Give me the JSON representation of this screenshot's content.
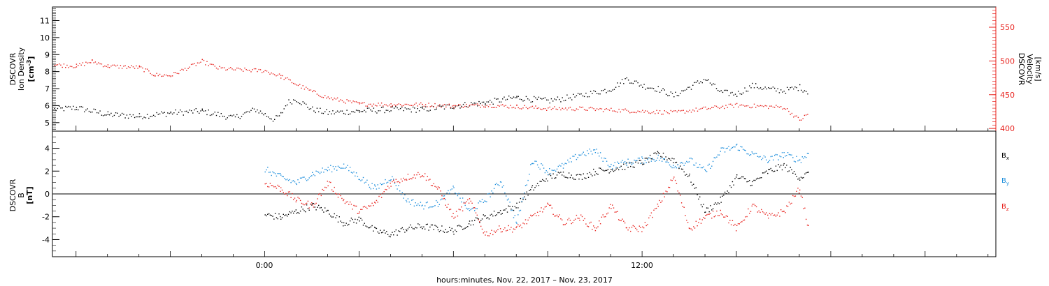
{
  "figure": {
    "xlabel": "hours:minutes, Nov. 22, 2017 – Nov. 23, 2017",
    "x_ticks": [
      "0:00",
      "12:00"
    ]
  },
  "panels": {
    "top": {
      "left_label_lines": [
        "DSCOVR",
        "Ion Density"
      ],
      "left_unit_prefix": "[cm",
      "left_unit_sup": "-3",
      "left_unit_suffix": "]",
      "right_label_lines": [
        "DSCOVR",
        "Velocity",
        "[km/s]"
      ],
      "left_ticks": [
        "5",
        "6",
        "7",
        "8",
        "9",
        "10",
        "11"
      ],
      "right_ticks": [
        "400",
        "450",
        "500",
        "550"
      ]
    },
    "bottom": {
      "label_lines": [
        "DSCOVR",
        "B",
        "[nT]"
      ],
      "ticks": [
        "-4",
        "-2",
        "0",
        "2",
        "4"
      ],
      "legend": [
        {
          "base": "B",
          "sub": "x",
          "color": "#000000"
        },
        {
          "base": "B",
          "sub": "y",
          "color": "#1e8fdc"
        },
        {
          "base": "B",
          "sub": "z",
          "color": "#e8231e"
        }
      ]
    }
  },
  "colors": {
    "black": "#000000",
    "red": "#e8231e",
    "blue": "#1e8fdc",
    "axis": "#000000"
  },
  "chart_data": [
    {
      "type": "scatter",
      "x_unit": "hours from 2017-11-22 00:00",
      "xlim": [
        -6.75,
        23.25
      ],
      "ylim_left": [
        4.5,
        11.8
      ],
      "ylim_right": [
        396,
        580
      ],
      "right_axis_color": "#e8231e",
      "series": [
        {
          "color": "#000000",
          "axis": "left",
          "x": [
            -6.7,
            -6,
            -5,
            -4,
            -3,
            -2,
            -1,
            -0.3,
            0.3,
            0.5,
            0.7,
            1,
            1.5,
            2,
            3,
            4,
            5,
            6,
            7,
            8,
            9,
            10,
            11,
            11.5,
            12,
            12.5,
            13,
            13.5,
            14,
            14.5,
            15,
            15.5,
            16,
            16.5,
            17,
            17.3
          ],
          "y": [
            5.8,
            5.9,
            5.5,
            5.4,
            5.6,
            5.7,
            5.3,
            5.8,
            5.2,
            5.5,
            6.2,
            6.4,
            5.8,
            5.6,
            5.7,
            5.8,
            5.8,
            6.0,
            6.2,
            6.5,
            6.3,
            6.6,
            7.0,
            7.6,
            7.2,
            7.0,
            6.6,
            7.1,
            7.6,
            6.8,
            6.7,
            7.2,
            7.0,
            6.9,
            7.1,
            6.8
          ]
        },
        {
          "color": "#e8231e",
          "axis": "right",
          "x": [
            -6.7,
            -6,
            -5.5,
            -5,
            -4,
            -3.5,
            -3,
            -2,
            -1.5,
            -1,
            0,
            0.5,
            1,
            1.5,
            2,
            3,
            4,
            5,
            6,
            7,
            8,
            9,
            10,
            11,
            12,
            13,
            14,
            15,
            15.5,
            16,
            16.5,
            17,
            17.3
          ],
          "y": [
            495,
            493,
            500,
            493,
            491,
            480,
            479,
            500,
            490,
            488,
            486,
            478,
            466,
            455,
            446,
            437,
            436,
            436,
            434,
            435,
            433,
            430,
            430,
            428,
            426,
            424,
            430,
            435,
            434,
            433,
            432,
            413,
            423
          ]
        }
      ]
    },
    {
      "type": "scatter",
      "x_unit": "hours from 2017-11-22 00:00",
      "xlim": [
        -6.75,
        23.25
      ],
      "ylim": [
        -5.5,
        5.5
      ],
      "series": [
        {
          "name": "Bx",
          "color": "#000000",
          "x": [
            0,
            0.5,
            1,
            1.5,
            2,
            2.5,
            3,
            3.5,
            4,
            4.5,
            5,
            5.5,
            6,
            6.5,
            7,
            7.5,
            8,
            8.5,
            9,
            9.5,
            10,
            10.5,
            11,
            11.5,
            12,
            12.5,
            13,
            13.5,
            14,
            14.5,
            15,
            15.5,
            16,
            16.5,
            17,
            17.3
          ],
          "y": [
            -1.8,
            -2.0,
            -1.5,
            -1.0,
            -1.5,
            -2.5,
            -2.2,
            -3.2,
            -3.5,
            -3.0,
            -2.8,
            -3.0,
            -3.2,
            -2.5,
            -2.0,
            -1.5,
            -1.0,
            0.5,
            1.5,
            1.8,
            1.5,
            2.0,
            2.2,
            2.5,
            2.8,
            3.5,
            3.0,
            1.5,
            -1.5,
            -0.5,
            1.5,
            1.0,
            2.0,
            2.5,
            1.5,
            1.8
          ]
        },
        {
          "name": "By",
          "color": "#1e8fdc",
          "x": [
            0,
            0.5,
            1,
            1.5,
            2,
            2.5,
            3,
            3.5,
            4,
            4.5,
            5,
            5.5,
            6,
            6.5,
            7,
            7.5,
            8,
            8.5,
            9,
            9.5,
            10,
            10.5,
            11,
            11.5,
            12,
            12.5,
            13,
            13.5,
            14,
            14.5,
            15,
            15.5,
            16,
            16.5,
            17,
            17.3
          ],
          "y": [
            2.2,
            1.5,
            1.0,
            1.8,
            2.2,
            2.5,
            1.5,
            0.5,
            1.5,
            -0.5,
            -1.0,
            -0.8,
            0.5,
            -1.5,
            -0.5,
            1.2,
            -2.5,
            3.0,
            2.0,
            2.5,
            3.5,
            3.8,
            2.5,
            2.8,
            3.0,
            3.2,
            2.5,
            3.0,
            2.0,
            3.8,
            4.2,
            3.5,
            3.0,
            3.5,
            3.0,
            3.6
          ]
        },
        {
          "name": "Bz",
          "color": "#e8231e",
          "x": [
            0,
            0.5,
            1,
            1.5,
            2,
            2.5,
            3,
            3.5,
            4,
            4.5,
            5,
            5.5,
            6,
            6.5,
            7,
            7.5,
            8,
            8.5,
            9,
            9.5,
            10,
            10.5,
            11,
            11.5,
            12,
            12.5,
            13,
            13.5,
            14,
            14.5,
            15,
            15.5,
            16,
            16.5,
            17,
            17.3
          ],
          "y": [
            1.0,
            0.5,
            -0.5,
            -1.0,
            1.0,
            -0.5,
            -1.5,
            -0.8,
            1.0,
            1.5,
            1.8,
            0.5,
            -2.0,
            -0.5,
            -3.5,
            -3.0,
            -3.0,
            -2.0,
            -1.0,
            -2.5,
            -2.0,
            -3.0,
            -1.0,
            -3.0,
            -3.0,
            -1.0,
            1.5,
            -3.0,
            -2.0,
            -1.5,
            -3.0,
            -1.0,
            -2.0,
            -1.5,
            0.5,
            -3.2
          ]
        }
      ]
    }
  ]
}
